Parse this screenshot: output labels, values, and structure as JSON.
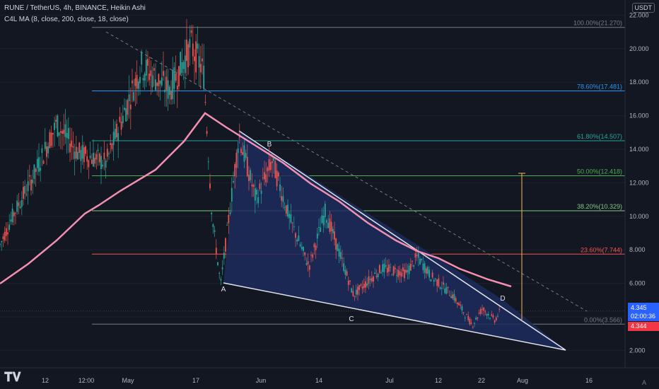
{
  "header": {
    "title": "RUNE / TetherUS, 4h, BINANCE, Heikin Ashi",
    "indicator": "C4L MA (8, close, 200, close, 18, close)"
  },
  "currency_button": "USDT",
  "price_tags": {
    "current_price": "4.345",
    "countdown": "02:00:36",
    "second_price": "4.344"
  },
  "auto_label": "A",
  "colors": {
    "background": "#131722",
    "up": "#26a69a",
    "down": "#ef5350",
    "ma": "#f48fb1",
    "pattern_fill": "#1c2c5c",
    "tag_blue": "#2962ff",
    "tag_red": "#f23645"
  },
  "chart_data": {
    "type": "candlestick",
    "x_ticks": [
      "12",
      "12:00",
      "May",
      "17",
      "Jun",
      "14",
      "Jul",
      "12",
      "22",
      "Aug",
      "16"
    ],
    "y_ticks": [
      "22.000",
      "20.000",
      "18.000",
      "16.000",
      "14.000",
      "12.000",
      "10.000",
      "8.000",
      "6.000",
      "4.000",
      "2.000"
    ],
    "ylim": [
      1.5,
      22.5
    ],
    "fibonacci": [
      {
        "label": "100.00%(21.270)",
        "price": 21.27,
        "color": "#787b86"
      },
      {
        "label": "78.60%(17.481)",
        "price": 17.481,
        "color": "#2196f3"
      },
      {
        "label": "61.80%(14.507)",
        "price": 14.507,
        "color": "#26a69a"
      },
      {
        "label": "50.00%(12.418)",
        "price": 12.418,
        "color": "#4caf50"
      },
      {
        "label": "38.20%(10.329)",
        "price": 10.329,
        "color": "#81c784"
      },
      {
        "label": "23.60%(7.744)",
        "price": 7.744,
        "color": "#ef5350"
      },
      {
        "label": "0.00%(3.566)",
        "price": 3.566,
        "color": "#787b86"
      }
    ],
    "pattern_points": [
      "A",
      "B",
      "C",
      "D"
    ]
  }
}
